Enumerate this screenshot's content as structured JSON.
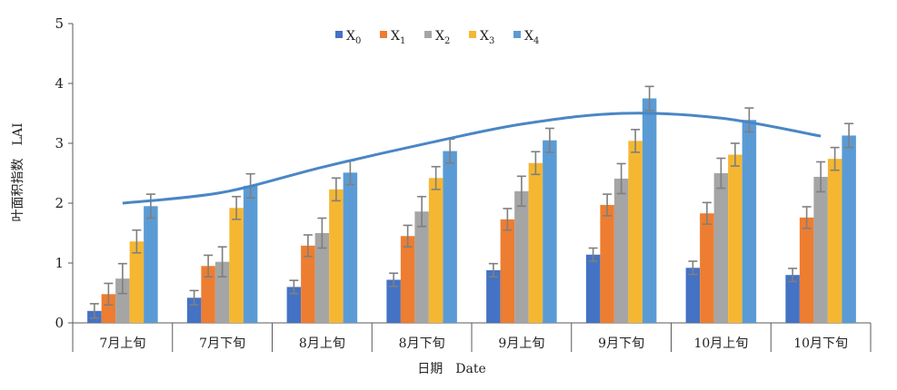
{
  "chart_data": {
    "type": "bar",
    "title": "",
    "xlabel": "日期　Date",
    "ylabel": "叶面积指数　LAI",
    "ylim": [
      0,
      5
    ],
    "yticks": [
      0,
      1,
      2,
      3,
      4,
      5
    ],
    "grid": false,
    "legend_position": "top-center",
    "categories": [
      "7月上旬",
      "7月下旬",
      "8月上旬",
      "8月下旬",
      "9月上旬",
      "9月下旬",
      "10月上旬",
      "10月下旬"
    ],
    "series": [
      {
        "name": "X",
        "sub": "0",
        "color": "#4472c4",
        "values": [
          0.2,
          0.42,
          0.6,
          0.72,
          0.88,
          1.14,
          0.92,
          0.8
        ],
        "errors": [
          0.12,
          0.12,
          0.11,
          0.11,
          0.11,
          0.11,
          0.11,
          0.11
        ]
      },
      {
        "name": "X",
        "sub": "1",
        "color": "#ed7d31",
        "values": [
          0.48,
          0.95,
          1.29,
          1.45,
          1.73,
          1.97,
          1.83,
          1.76
        ],
        "errors": [
          0.18,
          0.18,
          0.18,
          0.18,
          0.18,
          0.18,
          0.18,
          0.18
        ]
      },
      {
        "name": "X",
        "sub": "2",
        "color": "#a5a5a5",
        "values": [
          0.74,
          1.02,
          1.5,
          1.86,
          2.2,
          2.41,
          2.5,
          2.44
        ],
        "errors": [
          0.25,
          0.25,
          0.25,
          0.25,
          0.25,
          0.25,
          0.25,
          0.25
        ]
      },
      {
        "name": "X",
        "sub": "3",
        "color": "#f5b731",
        "values": [
          1.36,
          1.92,
          2.23,
          2.42,
          2.67,
          3.04,
          2.81,
          2.74
        ],
        "errors": [
          0.19,
          0.19,
          0.19,
          0.19,
          0.19,
          0.19,
          0.19,
          0.19
        ]
      },
      {
        "name": "X",
        "sub": "4",
        "color": "#5b9bd5",
        "values": [
          1.95,
          2.29,
          2.51,
          2.87,
          3.05,
          3.75,
          3.39,
          3.13
        ],
        "errors": [
          0.2,
          0.2,
          0.2,
          0.2,
          0.2,
          0.2,
          0.2,
          0.2
        ]
      }
    ],
    "trendline": {
      "color": "#4a86c5",
      "points": [
        [
          0,
          2.0
        ],
        [
          1,
          2.18
        ],
        [
          2,
          2.6
        ],
        [
          3,
          2.98
        ],
        [
          4,
          3.32
        ],
        [
          5,
          3.5
        ],
        [
          6,
          3.42
        ],
        [
          7,
          3.12
        ]
      ]
    }
  }
}
